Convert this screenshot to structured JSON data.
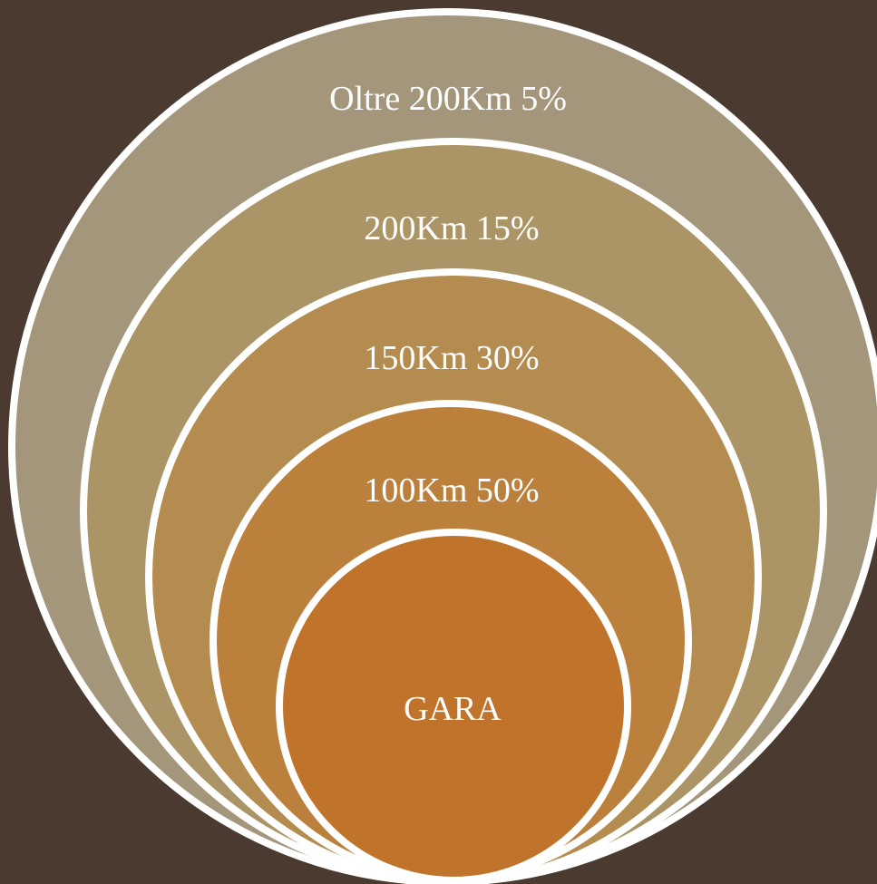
{
  "diagram": {
    "background_color": "#4a3a30",
    "outline_color": "#ffffff",
    "rings": [
      {
        "label": "Oltre 200Km 5%",
        "color": "#a3967a"
      },
      {
        "label": "200Km 15%",
        "color": "#ab9566"
      },
      {
        "label": "150Km 30%",
        "color": "#b48c4f"
      },
      {
        "label": "100Km 50%",
        "color": "#bb813c"
      },
      {
        "label": "GARA",
        "color": "#c0742b"
      }
    ]
  }
}
